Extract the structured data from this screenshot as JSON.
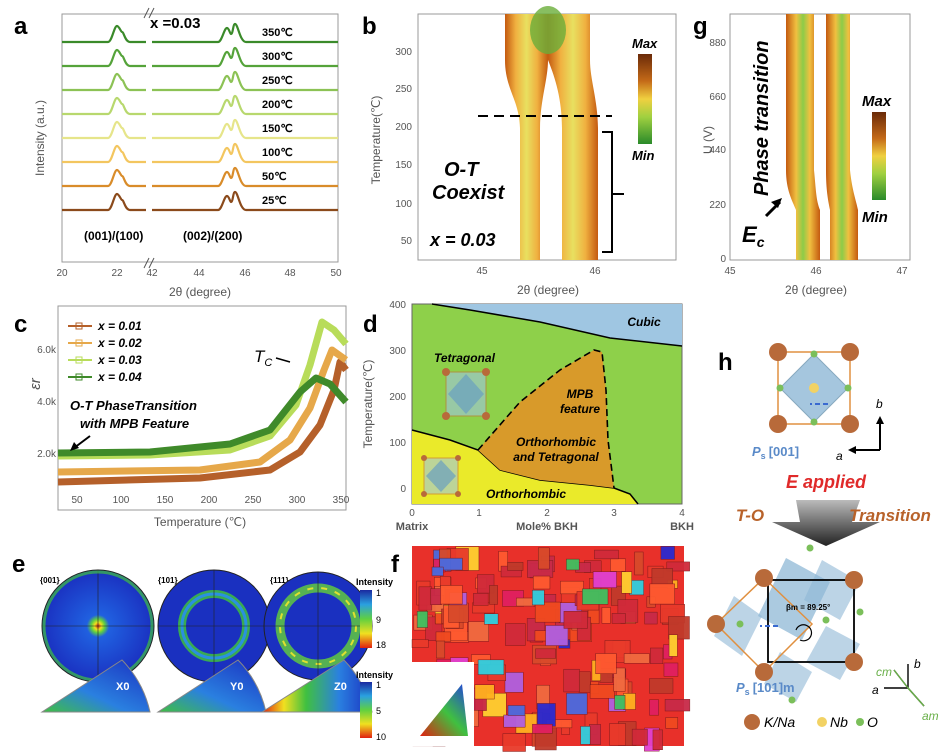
{
  "panels": {
    "a": {
      "label": "a",
      "x_value": "x =0.03",
      "temperatures": [
        "350℃",
        "300℃",
        "250℃",
        "200℃",
        "150℃",
        "100℃",
        "50℃",
        "25℃"
      ],
      "colors": [
        "#3a8a2a",
        "#55a33a",
        "#8cc255",
        "#b8d86e",
        "#e6e58a",
        "#f3c65f",
        "#d98c2a",
        "#8b4a1b"
      ],
      "peak1": "(001)/(100)",
      "peak2": "(002)/(200)",
      "ylabel": "Intensity (a.u.)",
      "xlabel": "2θ (degree)",
      "xticks": [
        "20",
        "22",
        "42",
        "44",
        "46",
        "48",
        "50"
      ]
    },
    "b": {
      "label": "b",
      "ylabel": "Temperature(℃)",
      "xlabel": "2θ (degree)",
      "xticks": [
        "45",
        "46"
      ],
      "yticks": [
        "50",
        "100",
        "150",
        "200",
        "250",
        "300"
      ],
      "note": "O-T",
      "note2": "Coexist",
      "x_value": "x = 0.03",
      "max": "Max",
      "min": "Min"
    },
    "g": {
      "label": "g",
      "ylabel": "U (V)",
      "xlabel": "2θ (degree)",
      "xticks": [
        "45",
        "46",
        "47"
      ],
      "yticks": [
        "0",
        "220",
        "440",
        "660",
        "880"
      ],
      "note": "Phase transition",
      "ec": "E",
      "ec_sub": "c",
      "max": "Max",
      "min": "Min"
    },
    "c": {
      "label": "c",
      "ylabel": "εr",
      "xlabel": "Temperature (℃)",
      "xticks": [
        "50",
        "100",
        "150",
        "200",
        "250",
        "300",
        "350"
      ],
      "yticks": [
        "2.0k",
        "4.0k",
        "6.0k"
      ],
      "legend": [
        "x = 0.01",
        "x = 0.02",
        "x = 0.03",
        "x = 0.04"
      ],
      "legend_colors": [
        "#b5602a",
        "#e6a84a",
        "#b8dc5a",
        "#3f8a2a"
      ],
      "tc": "T",
      "tc_sub": "C",
      "note1": "O-T PhaseTransition",
      "note2": "with MPB Feature"
    },
    "d": {
      "label": "d",
      "ylabel": "Temperature(℃)",
      "xlabel": "Mole% BKH",
      "xtick_left": "Matrix",
      "xtick_right": "BKH",
      "xticks": [
        "0",
        "1",
        "2",
        "3",
        "4"
      ],
      "yticks": [
        "0",
        "100",
        "200",
        "300",
        "400"
      ],
      "regions": {
        "cubic": "Cubic",
        "tetragonal": "Tetragonal",
        "mpb1": "MPB",
        "mpb2": "feature",
        "ot1": "Orthorhombic",
        "ot2": "and Tetragonal",
        "ortho": "Orthorhombic"
      }
    },
    "e": {
      "label": "e",
      "poles": [
        "{001}",
        "{101}",
        "{111}"
      ],
      "ipf": [
        "X0",
        "Y0",
        "Z0"
      ],
      "intensity": "Intensity",
      "scale1": [
        "1",
        "9",
        "18"
      ],
      "scale2": [
        "1",
        "5",
        "10"
      ]
    },
    "f": {
      "label": "f"
    },
    "h": {
      "label": "h",
      "ps_top": "P",
      "ps_top_sub": "s",
      "ps_top_dir": "[001]",
      "e_applied": "E applied",
      "to1": "T-O",
      "to2": "Transition",
      "angle": "βm = 89.25°",
      "ps_bot": "P",
      "ps_bot_sub": "s",
      "ps_bot_dir": "[101]m",
      "axis_a": "a",
      "axis_b": "b",
      "axis_cm": "cm",
      "axis_am": "am",
      "legend": [
        "K/Na",
        "Nb",
        "O"
      ],
      "legend_colors": [
        "#b86a3a",
        "#f2d264",
        "#7bbf5a"
      ]
    }
  }
}
